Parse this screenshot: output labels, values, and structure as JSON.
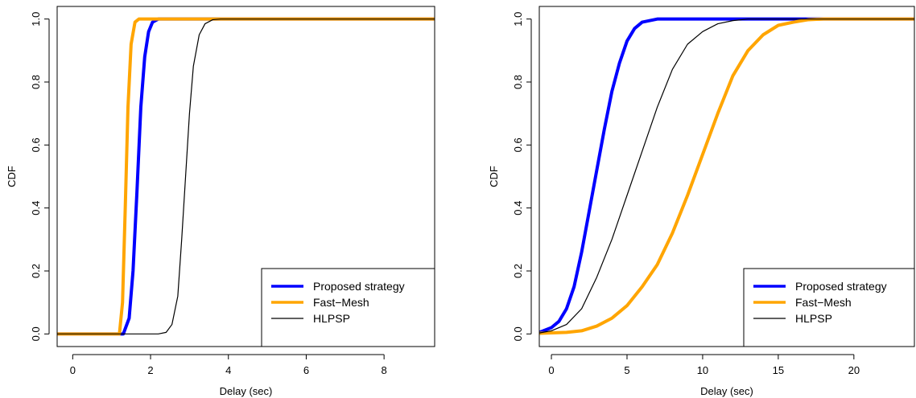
{
  "chart_data": [
    {
      "type": "line",
      "xlabel": "Delay (sec)",
      "ylabel": "CDF",
      "xlim": [
        -0.4,
        9.3
      ],
      "ylim": [
        -0.04,
        1.04
      ],
      "xticks": [
        0,
        2,
        4,
        6,
        8
      ],
      "yticks": [
        0.0,
        0.2,
        0.4,
        0.6,
        0.8,
        1.0
      ],
      "legend_position": "bottom-right",
      "series": [
        {
          "name": "Proposed strategy",
          "color": "#0000ff",
          "points": [
            [
              -0.4,
              0
            ],
            [
              1.3,
              0
            ],
            [
              1.45,
              0.05
            ],
            [
              1.55,
              0.2
            ],
            [
              1.65,
              0.45
            ],
            [
              1.75,
              0.72
            ],
            [
              1.85,
              0.88
            ],
            [
              1.95,
              0.96
            ],
            [
              2.05,
              0.99
            ],
            [
              2.2,
              1.0
            ],
            [
              9.3,
              1.0
            ]
          ]
        },
        {
          "name": "Fast−Mesh",
          "color": "#ffa500",
          "points": [
            [
              -0.4,
              0
            ],
            [
              1.2,
              0
            ],
            [
              1.28,
              0.1
            ],
            [
              1.35,
              0.4
            ],
            [
              1.42,
              0.72
            ],
            [
              1.5,
              0.92
            ],
            [
              1.6,
              0.99
            ],
            [
              1.7,
              1.0
            ],
            [
              9.3,
              1.0
            ]
          ]
        },
        {
          "name": "HLPSP",
          "color": "#000000",
          "points": [
            [
              -0.4,
              0
            ],
            [
              2.2,
              0
            ],
            [
              2.4,
              0.005
            ],
            [
              2.55,
              0.03
            ],
            [
              2.7,
              0.12
            ],
            [
              2.8,
              0.3
            ],
            [
              2.9,
              0.5
            ],
            [
              3.0,
              0.7
            ],
            [
              3.1,
              0.85
            ],
            [
              3.25,
              0.95
            ],
            [
              3.4,
              0.985
            ],
            [
              3.6,
              0.998
            ],
            [
              3.8,
              1.0
            ],
            [
              9.3,
              1.0
            ]
          ]
        }
      ]
    },
    {
      "type": "line",
      "xlabel": "Delay (sec)",
      "ylabel": "CDF",
      "xlim": [
        -0.8,
        24
      ],
      "ylim": [
        -0.04,
        1.04
      ],
      "xticks": [
        0,
        5,
        10,
        15,
        20
      ],
      "yticks": [
        0.0,
        0.2,
        0.4,
        0.6,
        0.8,
        1.0
      ],
      "legend_position": "bottom-right",
      "series": [
        {
          "name": "Proposed strategy",
          "color": "#0000ff",
          "points": [
            [
              -0.8,
              0.005
            ],
            [
              0,
              0.02
            ],
            [
              0.5,
              0.04
            ],
            [
              1,
              0.08
            ],
            [
              1.5,
              0.15
            ],
            [
              2,
              0.26
            ],
            [
              2.5,
              0.39
            ],
            [
              3,
              0.52
            ],
            [
              3.5,
              0.65
            ],
            [
              4,
              0.77
            ],
            [
              4.5,
              0.86
            ],
            [
              5,
              0.93
            ],
            [
              5.5,
              0.97
            ],
            [
              6,
              0.99
            ],
            [
              7,
              1.0
            ],
            [
              24,
              1.0
            ]
          ]
        },
        {
          "name": "Fast−Mesh",
          "color": "#ffa500",
          "points": [
            [
              -0.8,
              0.002
            ],
            [
              1,
              0.005
            ],
            [
              2,
              0.01
            ],
            [
              3,
              0.025
            ],
            [
              4,
              0.05
            ],
            [
              5,
              0.09
            ],
            [
              6,
              0.15
            ],
            [
              7,
              0.22
            ],
            [
              8,
              0.32
            ],
            [
              9,
              0.44
            ],
            [
              10,
              0.57
            ],
            [
              11,
              0.7
            ],
            [
              12,
              0.82
            ],
            [
              13,
              0.9
            ],
            [
              14,
              0.95
            ],
            [
              15,
              0.98
            ],
            [
              16,
              0.99
            ],
            [
              17,
              0.998
            ],
            [
              18,
              1.0
            ],
            [
              24,
              1.0
            ]
          ]
        },
        {
          "name": "HLPSP",
          "color": "#000000",
          "points": [
            [
              -0.8,
              0.003
            ],
            [
              0,
              0.01
            ],
            [
              1,
              0.03
            ],
            [
              2,
              0.08
            ],
            [
              3,
              0.18
            ],
            [
              4,
              0.3
            ],
            [
              5,
              0.44
            ],
            [
              6,
              0.58
            ],
            [
              7,
              0.72
            ],
            [
              8,
              0.84
            ],
            [
              9,
              0.92
            ],
            [
              10,
              0.96
            ],
            [
              11,
              0.985
            ],
            [
              12,
              0.995
            ],
            [
              13,
              1.0
            ],
            [
              24,
              1.0
            ]
          ]
        }
      ]
    }
  ]
}
